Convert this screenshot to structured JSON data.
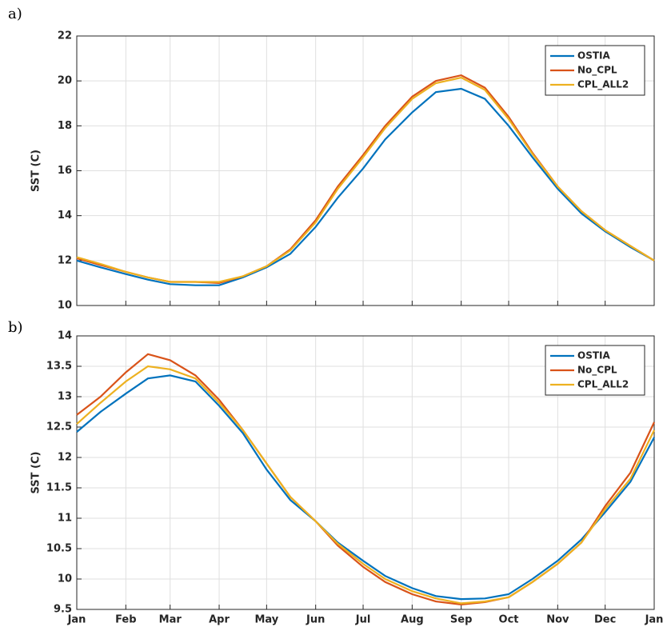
{
  "chart_data": [
    {
      "type": "line",
      "label": "a)",
      "ylabel": "SST (C)",
      "x": [
        0,
        15,
        31,
        45,
        59,
        75,
        90,
        105,
        120,
        135,
        151,
        165,
        181,
        195,
        212,
        227,
        243,
        258,
        273,
        288,
        304,
        319,
        334,
        350,
        365
      ],
      "series": [
        {
          "name": "OSTIA",
          "color": "#0072BD",
          "values": [
            12.0,
            11.7,
            11.4,
            11.15,
            10.95,
            10.9,
            10.9,
            11.25,
            11.7,
            12.3,
            13.5,
            14.8,
            16.1,
            17.4,
            18.6,
            19.5,
            19.65,
            19.2,
            18.0,
            16.6,
            15.2,
            14.1,
            13.3,
            12.6,
            12.0
          ]
        },
        {
          "name": "No_CPL",
          "color": "#D95319",
          "values": [
            12.1,
            11.8,
            11.5,
            11.25,
            11.05,
            11.05,
            11.0,
            11.3,
            11.75,
            12.5,
            13.8,
            15.3,
            16.7,
            18.0,
            19.3,
            20.0,
            20.25,
            19.7,
            18.4,
            16.8,
            15.3,
            14.2,
            13.35,
            12.65,
            12.0
          ]
        },
        {
          "name": "CPL_ALL2",
          "color": "#EDB120",
          "values": [
            12.15,
            11.85,
            11.5,
            11.25,
            11.05,
            11.05,
            11.05,
            11.3,
            11.75,
            12.45,
            13.7,
            15.2,
            16.6,
            17.9,
            19.2,
            19.9,
            20.15,
            19.6,
            18.3,
            16.75,
            15.3,
            14.2,
            13.35,
            12.65,
            12.0
          ]
        }
      ],
      "xlim": [
        0,
        365
      ],
      "xticks": [
        0,
        31,
        59,
        90,
        120,
        151,
        181,
        212,
        243,
        273,
        304,
        334,
        365
      ],
      "ylim": [
        10,
        22
      ],
      "yticks": [
        10,
        12,
        14,
        16,
        18,
        20,
        22
      ],
      "grid": true,
      "legend": "upper right"
    },
    {
      "type": "line",
      "label": "b)",
      "ylabel": "SST (C)",
      "x": [
        0,
        15,
        31,
        45,
        59,
        75,
        90,
        105,
        120,
        135,
        151,
        165,
        181,
        195,
        212,
        227,
        243,
        258,
        273,
        288,
        304,
        319,
        334,
        350,
        365
      ],
      "series": [
        {
          "name": "OSTIA",
          "color": "#0072BD",
          "values": [
            12.42,
            12.75,
            13.05,
            13.3,
            13.35,
            13.25,
            12.85,
            12.4,
            11.8,
            11.3,
            10.95,
            10.6,
            10.3,
            10.05,
            9.85,
            9.72,
            9.67,
            9.68,
            9.75,
            10.0,
            10.3,
            10.65,
            11.1,
            11.6,
            12.33
          ]
        },
        {
          "name": "No_CPL",
          "color": "#D95319",
          "values": [
            12.7,
            13.0,
            13.4,
            13.7,
            13.6,
            13.35,
            12.95,
            12.45,
            11.9,
            11.35,
            10.95,
            10.55,
            10.2,
            9.95,
            9.75,
            9.63,
            9.58,
            9.62,
            9.7,
            9.95,
            10.25,
            10.6,
            11.2,
            11.75,
            12.58
          ]
        },
        {
          "name": "CPL_ALL2",
          "color": "#EDB120",
          "values": [
            12.55,
            12.9,
            13.25,
            13.5,
            13.45,
            13.3,
            12.9,
            12.45,
            11.9,
            11.35,
            10.95,
            10.58,
            10.25,
            10.0,
            9.8,
            9.68,
            9.6,
            9.63,
            9.7,
            9.95,
            10.25,
            10.6,
            11.15,
            11.65,
            12.45
          ]
        }
      ],
      "xlim": [
        0,
        365
      ],
      "xticks": [
        {
          "value": 0,
          "label": "Jan"
        },
        {
          "value": 31,
          "label": "Feb"
        },
        {
          "value": 59,
          "label": "Mar"
        },
        {
          "value": 90,
          "label": "Apr"
        },
        {
          "value": 120,
          "label": "May"
        },
        {
          "value": 151,
          "label": "Jun"
        },
        {
          "value": 181,
          "label": "Jul"
        },
        {
          "value": 212,
          "label": "Aug"
        },
        {
          "value": 243,
          "label": "Sep"
        },
        {
          "value": 273,
          "label": "Oct"
        },
        {
          "value": 304,
          "label": "Nov"
        },
        {
          "value": 334,
          "label": "Dec"
        },
        {
          "value": 365,
          "label": "Jan"
        }
      ],
      "ylim": [
        9.5,
        14
      ],
      "yticks": [
        9.5,
        10,
        10.5,
        11,
        11.5,
        12,
        12.5,
        13,
        13.5,
        14
      ],
      "grid": true,
      "legend": "upper right"
    }
  ]
}
